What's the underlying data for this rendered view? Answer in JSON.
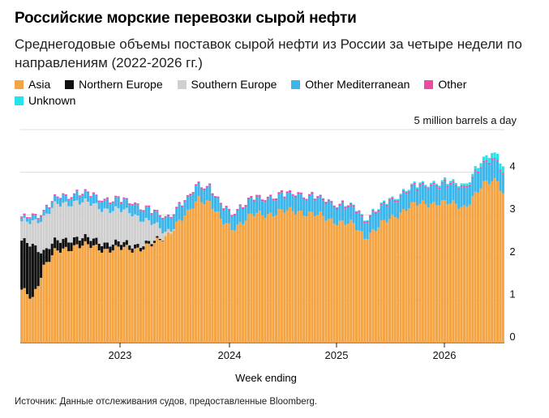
{
  "title": "Российские морские перевозки сырой нефти",
  "subtitle": "Среднегодовые объемы поставок сырой нефти из России за четыре недели по направлениям (2022-2026 гг.)",
  "unit_label": "5 million barrels a day",
  "source": "Источник: Данные отслеживания судов, предоставленные Bloomberg.",
  "colors": {
    "Asia": "#f4a443",
    "Northern Europe": "#111111",
    "Southern Europe": "#cfcfcf",
    "Other Mediterranean": "#3cb6ea",
    "Other": "#ec4aa5",
    "Unknown": "#24e3ee"
  },
  "chart_data": {
    "type": "bar",
    "stacked": true,
    "xlabel": "Week ending",
    "ylabel": "",
    "ylim": [
      0,
      5
    ],
    "yticks": [
      0,
      1,
      2,
      3,
      4
    ],
    "x_tick_labels": [
      "2023",
      "2024",
      "2025",
      "2026"
    ],
    "legend_position": "top-left",
    "grid": true,
    "series_names": [
      "Asia",
      "Northern Europe",
      "Southern Europe",
      "Other Mediterranean",
      "Other",
      "Unknown"
    ],
    "weekly_totals": {
      "x_start": "2022-01",
      "points": [
        [
          0,
          2.85
        ],
        [
          4,
          3.0
        ],
        [
          8,
          3.1
        ],
        [
          12,
          3.3
        ],
        [
          16,
          3.45
        ],
        [
          20,
          3.5
        ],
        [
          26,
          3.35
        ],
        [
          30,
          3.2
        ],
        [
          34,
          3.3
        ],
        [
          40,
          3.3
        ],
        [
          44,
          3.05
        ],
        [
          48,
          2.9
        ],
        [
          52,
          3.15
        ],
        [
          56,
          3.4
        ],
        [
          60,
          3.45
        ],
        [
          64,
          3.85
        ],
        [
          68,
          3.75
        ],
        [
          72,
          3.2
        ],
        [
          76,
          3.0
        ],
        [
          80,
          3.1
        ],
        [
          84,
          3.4
        ],
        [
          88,
          3.5
        ],
        [
          92,
          3.45
        ],
        [
          96,
          3.65
        ],
        [
          100,
          3.5
        ],
        [
          104,
          3.4
        ],
        [
          108,
          3.55
        ],
        [
          112,
          3.35
        ],
        [
          116,
          3.25
        ],
        [
          120,
          3.05
        ],
        [
          124,
          2.8
        ],
        [
          128,
          3.4
        ],
        [
          132,
          3.5
        ],
        [
          136,
          3.3
        ],
        [
          140,
          3.6
        ],
        [
          144,
          3.7
        ],
        [
          148,
          3.75
        ],
        [
          152,
          3.55
        ],
        [
          156,
          3.65
        ],
        [
          160,
          3.5
        ],
        [
          164,
          3.8
        ],
        [
          168,
          4.1
        ],
        [
          172,
          4.2
        ],
        [
          174,
          4.1
        ]
      ]
    },
    "composition_notes": {
      "Asia": [
        [
          0,
          1.2
        ],
        [
          4,
          1.05
        ],
        [
          8,
          1.8
        ],
        [
          12,
          2.1
        ],
        [
          20,
          2.3
        ],
        [
          30,
          2.2
        ],
        [
          40,
          2.2
        ],
        [
          48,
          2.3
        ],
        [
          52,
          2.5
        ],
        [
          56,
          2.8
        ],
        [
          60,
          3.0
        ],
        [
          64,
          3.4
        ],
        [
          68,
          3.3
        ],
        [
          72,
          2.85
        ],
        [
          76,
          2.7
        ],
        [
          84,
          3.0
        ],
        [
          100,
          3.1
        ],
        [
          120,
          2.75
        ],
        [
          124,
          2.5
        ],
        [
          140,
          3.2
        ],
        [
          150,
          3.3
        ],
        [
          160,
          3.2
        ],
        [
          168,
          3.75
        ],
        [
          172,
          3.85
        ],
        [
          174,
          3.5
        ]
      ],
      "Northern Europe": [
        [
          0,
          1.15
        ],
        [
          4,
          1.25
        ],
        [
          8,
          0.35
        ],
        [
          12,
          0.25
        ],
        [
          20,
          0.18
        ],
        [
          30,
          0.15
        ],
        [
          40,
          0.1
        ],
        [
          48,
          0.05
        ],
        [
          52,
          0.0
        ]
      ],
      "Southern Europe": [
        [
          0,
          0.45
        ],
        [
          4,
          0.55
        ],
        [
          8,
          0.8
        ],
        [
          12,
          0.85
        ],
        [
          20,
          0.85
        ],
        [
          30,
          0.8
        ],
        [
          40,
          0.75
        ],
        [
          48,
          0.4
        ],
        [
          52,
          0.1
        ],
        [
          56,
          0.0
        ]
      ],
      "Other Mediterranean": [
        [
          0,
          0.05
        ],
        [
          20,
          0.15
        ],
        [
          40,
          0.2
        ],
        [
          56,
          0.3
        ],
        [
          72,
          0.3
        ],
        [
          100,
          0.35
        ],
        [
          140,
          0.35
        ],
        [
          174,
          0.45
        ]
      ],
      "Other": [
        [
          0,
          0.03
        ],
        [
          40,
          0.03
        ],
        [
          100,
          0.04
        ],
        [
          174,
          0.03
        ]
      ],
      "Unknown": [
        [
          0,
          0.0
        ],
        [
          100,
          0.0
        ],
        [
          160,
          0.05
        ],
        [
          174,
          0.15
        ]
      ]
    }
  }
}
